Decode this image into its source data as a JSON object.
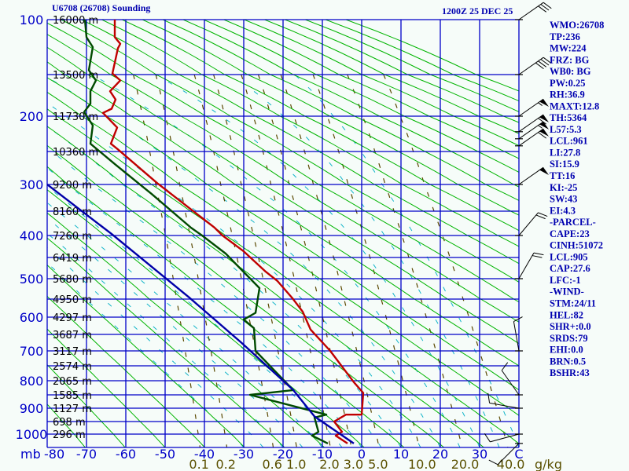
{
  "chart_data": {
    "type": "line",
    "title": "U6708 (26708) Sounding",
    "datetime": "1200Z 25 DEC 25",
    "pressure_unit": "mb",
    "temp_unit": "C",
    "mixing_unit": "g/kg",
    "pressure_ticks": [
      "100",
      "200",
      "300",
      "400",
      "500",
      "600",
      "700",
      "800",
      "900",
      "1000"
    ],
    "height_labels": [
      {
        "p": 100,
        "label": "16000 m"
      },
      {
        "p": 150,
        "label": "13500 m"
      },
      {
        "p": 200,
        "label": "11730 m"
      },
      {
        "p": 250,
        "label": "10360 m"
      },
      {
        "p": 300,
        "label": "9200 m"
      },
      {
        "p": 350,
        "label": "8160 m"
      },
      {
        "p": 400,
        "label": "7260 m"
      },
      {
        "p": 450,
        "label": "6419 m"
      },
      {
        "p": 500,
        "label": "5680 m"
      },
      {
        "p": 550,
        "label": "4950 m"
      },
      {
        "p": 600,
        "label": "4297 m"
      },
      {
        "p": 650,
        "label": "3687 m"
      },
      {
        "p": 700,
        "label": "3117 m"
      },
      {
        "p": 750,
        "label": "2574 m"
      },
      {
        "p": 800,
        "label": "2065 m"
      },
      {
        "p": 850,
        "label": "1585 m"
      },
      {
        "p": 900,
        "label": "1127 m"
      },
      {
        "p": 950,
        "label": "698 m"
      },
      {
        "p": 1000,
        "label": "296 m"
      }
    ],
    "temp_ticks": [
      "-80",
      "-70",
      "-60",
      "-50",
      "-40",
      "-30",
      "-20",
      "-10",
      "0",
      "10",
      "20",
      "30",
      "40"
    ],
    "temp_range": [
      -80,
      40
    ],
    "pressure_range": [
      100,
      1050
    ],
    "mixing_ratio_labels": [
      "0.1",
      "0.2",
      "0.6",
      "1.0",
      "2.0",
      "3.0",
      "5.0",
      "10.0",
      "20.0",
      "40.0"
    ],
    "series": [
      {
        "name": "temperature",
        "color": "#c00000",
        "points": [
          [
            100,
            -62.8
          ],
          [
            116,
            -62.8
          ],
          [
            122,
            -61.4
          ],
          [
            126,
            -62
          ],
          [
            149,
            -63.4
          ],
          [
            157,
            -61.4
          ],
          [
            170,
            -64
          ],
          [
            180,
            -62.6
          ],
          [
            191,
            -63.6
          ],
          [
            196,
            -65.8
          ],
          [
            216,
            -62.2
          ],
          [
            239,
            -63.8
          ],
          [
            247,
            -62
          ],
          [
            298,
            -52
          ],
          [
            384,
            -37.4
          ],
          [
            400,
            -35.4
          ],
          [
            436,
            -30
          ],
          [
            482,
            -24.6
          ],
          [
            506,
            -21.4
          ],
          [
            548,
            -17.6
          ],
          [
            585,
            -15
          ],
          [
            636,
            -13
          ],
          [
            700,
            -8
          ],
          [
            805,
            -2
          ],
          [
            843,
            0.4
          ],
          [
            924,
            0
          ],
          [
            924,
            -4
          ],
          [
            950,
            -7
          ],
          [
            991,
            -5
          ],
          [
            1006,
            -6.6
          ],
          [
            1035,
            -3.6
          ]
        ]
      },
      {
        "name": "dewpoint",
        "color": "#004a00",
        "points": [
          [
            100,
            -70.4
          ],
          [
            116,
            -70
          ],
          [
            125,
            -68.4
          ],
          [
            146,
            -69.4
          ],
          [
            157,
            -67.6
          ],
          [
            170,
            -69
          ],
          [
            185,
            -69
          ],
          [
            195,
            -70.6
          ],
          [
            213,
            -68.4
          ],
          [
            239,
            -69
          ],
          [
            270,
            -62.6
          ],
          [
            318,
            -53.4
          ],
          [
            384,
            -43.4
          ],
          [
            400,
            -40.6
          ],
          [
            441,
            -34.6
          ],
          [
            523,
            -26
          ],
          [
            588,
            -27
          ],
          [
            607,
            -30
          ],
          [
            632,
            -27.4
          ],
          [
            700,
            -27
          ],
          [
            833,
            -17.4
          ],
          [
            850,
            -28.4
          ],
          [
            924,
            -9
          ],
          [
            935,
            -12
          ],
          [
            991,
            -11
          ],
          [
            1006,
            -12.6
          ],
          [
            1035,
            -8.6
          ]
        ]
      },
      {
        "name": "parcel",
        "color": "#0000a8",
        "points": [
          [
            300,
            -80
          ],
          [
            397,
            -63.6
          ],
          [
            545,
            -44
          ],
          [
            675,
            -30.6
          ],
          [
            833,
            -17.4
          ],
          [
            931,
            -12
          ],
          [
            1035,
            -2
          ]
        ]
      }
    ],
    "winds": [
      {
        "p": 100,
        "dir": 55,
        "kt": 30
      },
      {
        "p": 150,
        "dir": 55,
        "kt": 40
      },
      {
        "p": 200,
        "dir": 55,
        "kt": 55
      },
      {
        "p": 222,
        "dir": 55,
        "kt": 60
      },
      {
        "p": 232,
        "dir": 55,
        "kt": 55
      },
      {
        "p": 242,
        "dir": 55,
        "kt": 60
      },
      {
        "p": 300,
        "dir": 55,
        "kt": 50
      },
      {
        "p": 400,
        "dir": 40,
        "kt": 20
      },
      {
        "p": 500,
        "dir": 30,
        "kt": 20
      },
      {
        "p": 700,
        "dir": 350,
        "kt": 10
      },
      {
        "p": 850,
        "dir": 325,
        "kt": 10
      },
      {
        "p": 900,
        "dir": 280,
        "kt": 10
      },
      {
        "p": 1000,
        "dir": 255,
        "kt": 10
      },
      {
        "p": 1035,
        "dir": 225,
        "kt": 10
      }
    ],
    "colors": {
      "grid": "#0000c8",
      "dry_adiabat": "#00b400",
      "moist_adiabat": "#10b4c8",
      "mixing": "#5a4800",
      "wind": "#000000"
    }
  },
  "indices": [
    "WMO:26708",
    "TP:236",
    "MW:224",
    "FRZ: BG",
    "WB0: BG",
    "PW:0.25",
    "RH:36.9",
    "MAXT:12.8",
    "TH:5364",
    "L57:5.3",
    "LCL:961",
    "LI:27.8",
    "SI:15.9",
    "TT:16",
    "KI:-25",
    "SW:43",
    "EI:4.3",
    "-PARCEL-",
    "CAPE:23",
    "CINH:51072",
    "LCL:905",
    "CAP:27.6",
    "LFC:-1",
    "-WIND-",
    "STM:24/11",
    "HEL:82",
    "SHR+:0.0",
    "SRDS:79",
    "EHI:0.0",
    "BRN:0.5",
    "BSHR:43"
  ]
}
